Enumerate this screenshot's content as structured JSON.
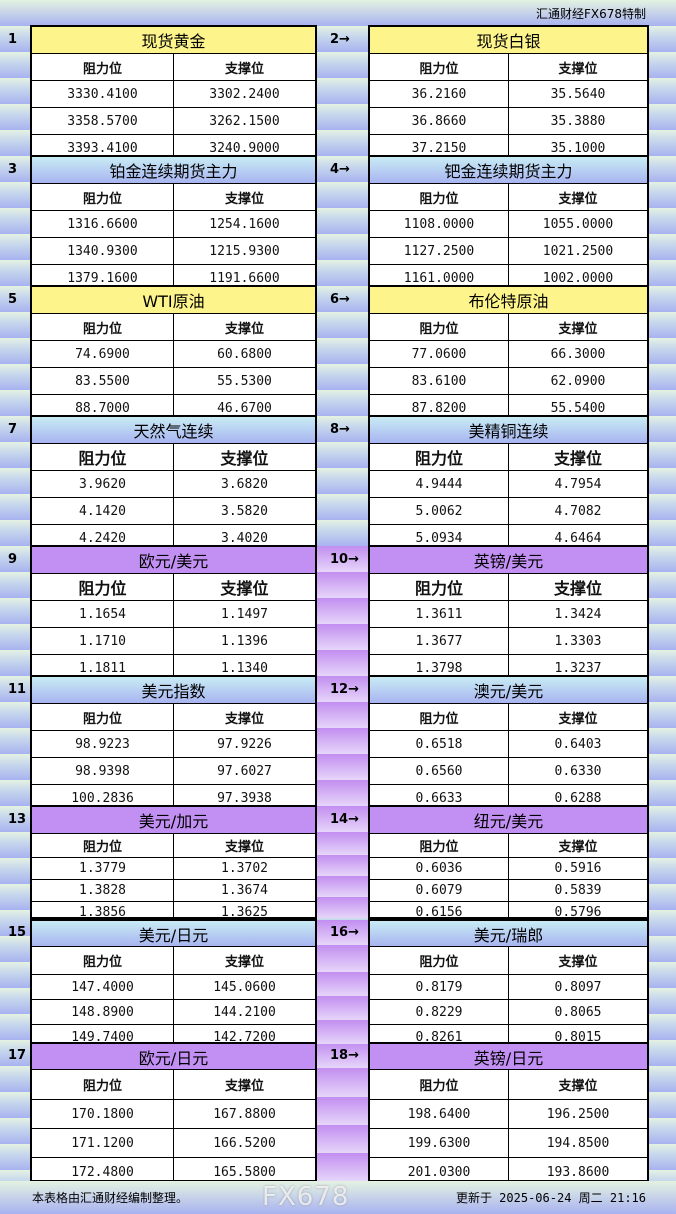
{
  "header": {
    "credit": "汇通财经FX678特制"
  },
  "column_labels": {
    "resistance": "阻力位",
    "support": "支撑位"
  },
  "instruments": [
    {
      "num": "1",
      "name": "现货黄金",
      "theme": "yellow",
      "resistance": [
        "3330.4100",
        "3358.5700",
        "3393.4100"
      ],
      "support": [
        "3302.2400",
        "3262.1500",
        "3240.9000"
      ]
    },
    {
      "num": "2→",
      "name": "现货白银",
      "theme": "yellow",
      "resistance": [
        "36.2160",
        "36.8660",
        "37.2150"
      ],
      "support": [
        "35.5640",
        "35.3880",
        "35.1000"
      ]
    },
    {
      "num": "3",
      "name": "铂金连续期货主力",
      "theme": "blue",
      "resistance": [
        "1316.6600",
        "1340.9300",
        "1379.1600"
      ],
      "support": [
        "1254.1600",
        "1215.9300",
        "1191.6600"
      ]
    },
    {
      "num": "4→",
      "name": "钯金连续期货主力",
      "theme": "blue",
      "resistance": [
        "1108.0000",
        "1127.2500",
        "1161.0000"
      ],
      "support": [
        "1055.0000",
        "1021.2500",
        "1002.0000"
      ]
    },
    {
      "num": "5",
      "name": "WTI原油",
      "theme": "yellow",
      "resistance": [
        "74.6900",
        "83.5500",
        "88.7000"
      ],
      "support": [
        "60.6800",
        "55.5300",
        "46.6700"
      ]
    },
    {
      "num": "6→",
      "name": "布伦特原油",
      "theme": "yellow",
      "resistance": [
        "77.0600",
        "83.6100",
        "87.8200"
      ],
      "support": [
        "66.3000",
        "62.0900",
        "55.5400"
      ]
    },
    {
      "num": "7",
      "name": "天然气连续",
      "theme": "blue",
      "resistance": [
        "3.9620",
        "4.1420",
        "4.2420"
      ],
      "support": [
        "3.6820",
        "3.5820",
        "3.4020"
      ]
    },
    {
      "num": "8→",
      "name": "美精铜连续",
      "theme": "blue",
      "resistance": [
        "4.9444",
        "5.0062",
        "5.0934"
      ],
      "support": [
        "4.7954",
        "4.7082",
        "4.6464"
      ]
    },
    {
      "num": "9",
      "name": "欧元/美元",
      "theme": "purple",
      "resistance": [
        "1.1654",
        "1.1710",
        "1.1811"
      ],
      "support": [
        "1.1497",
        "1.1396",
        "1.1340"
      ]
    },
    {
      "num": "10→",
      "name": "英镑/美元",
      "theme": "purple",
      "resistance": [
        "1.3611",
        "1.3677",
        "1.3798"
      ],
      "support": [
        "1.3424",
        "1.3303",
        "1.3237"
      ]
    },
    {
      "num": "11",
      "name": "美元指数",
      "theme": "blue",
      "resistance": [
        "98.9223",
        "98.9398",
        "100.2836"
      ],
      "support": [
        "97.9226",
        "97.6027",
        "97.3938"
      ]
    },
    {
      "num": "12→",
      "name": "澳元/美元",
      "theme": "blue",
      "resistance": [
        "0.6518",
        "0.6560",
        "0.6633"
      ],
      "support": [
        "0.6403",
        "0.6330",
        "0.6288"
      ]
    },
    {
      "num": "13",
      "name": "美元/加元",
      "theme": "purple",
      "resistance": [
        "1.3779",
        "1.3828",
        "1.3856"
      ],
      "support": [
        "1.3702",
        "1.3674",
        "1.3625"
      ]
    },
    {
      "num": "14→",
      "name": "纽元/美元",
      "theme": "purple",
      "resistance": [
        "0.6036",
        "0.6079",
        "0.6156"
      ],
      "support": [
        "0.5916",
        "0.5839",
        "0.5796"
      ]
    },
    {
      "num": "15",
      "name": "美元/日元",
      "theme": "blue",
      "resistance": [
        "147.4000",
        "148.8900",
        "149.7400"
      ],
      "support": [
        "145.0600",
        "144.2100",
        "142.7200"
      ]
    },
    {
      "num": "16→",
      "name": "美元/瑞郎",
      "theme": "blue",
      "resistance": [
        "0.8179",
        "0.8229",
        "0.8261"
      ],
      "support": [
        "0.8097",
        "0.8065",
        "0.8015"
      ]
    },
    {
      "num": "17",
      "name": "欧元/日元",
      "theme": "purple",
      "resistance": [
        "170.1800",
        "171.1200",
        "172.4800"
      ],
      "support": [
        "167.8800",
        "166.5200",
        "165.5800"
      ]
    },
    {
      "num": "18→",
      "name": "英镑/日元",
      "theme": "purple",
      "resistance": [
        "198.6400",
        "199.6300",
        "201.0300"
      ],
      "support": [
        "196.2500",
        "194.8500",
        "193.8600"
      ]
    }
  ],
  "footer": {
    "note": "本表格由汇通财经编制整理。",
    "updated": "更新于 2025-06-24 周二 21:16",
    "watermark": "FX678"
  },
  "colors": {
    "yellow": "#fdf48c",
    "blue": "#a8b4f0",
    "purple": "#c290f2"
  }
}
